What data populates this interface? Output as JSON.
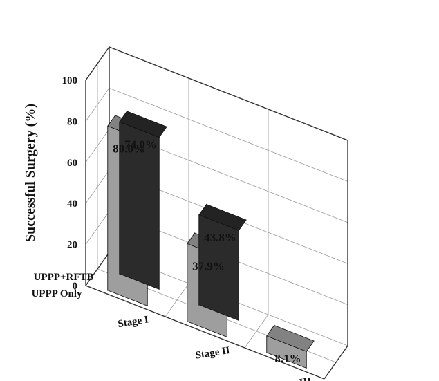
{
  "chart_data": {
    "type": "bar",
    "title": "",
    "ylabel": "Successful Surgery (%)",
    "xlabel": "",
    "ylim": [
      0,
      100
    ],
    "yticks": [
      0,
      20,
      40,
      60,
      80,
      100
    ],
    "categories": [
      "Stage I",
      "Stage II",
      "Stage III"
    ],
    "series": [
      {
        "name": "UPPP+RFTB",
        "values": [
          74.0,
          43.8,
          null
        ],
        "labels": [
          "74.0%",
          "43.8%",
          ""
        ]
      },
      {
        "name": "UPPP Only",
        "values": [
          80.0,
          37.9,
          8.1
        ],
        "labels": [
          "80.0%",
          "37.9%",
          "8.1%"
        ]
      }
    ],
    "legend": "series labels on depth axis",
    "grid": true,
    "colors": {
      "back_series": "#2b2b2b",
      "front_series": "#9e9e9e"
    }
  }
}
